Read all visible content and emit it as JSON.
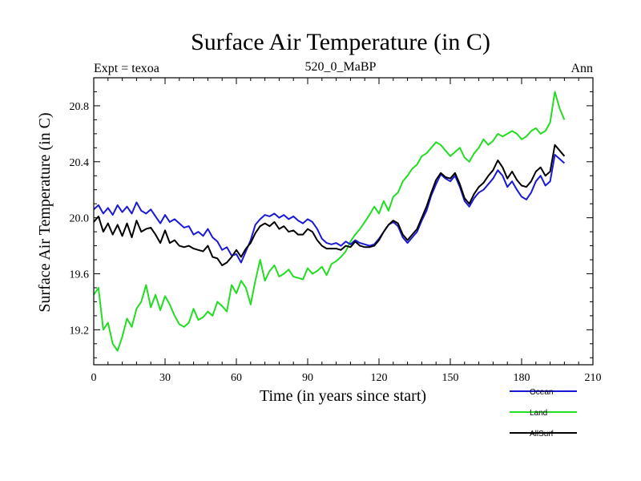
{
  "chart_data": {
    "type": "line",
    "title": "Surface Air Temperature (in C)",
    "left_subtitle": "Expt = texoa",
    "center_subtitle": "520_0_MaBP",
    "right_subtitle": "Ann",
    "xlabel": "Time (in years since start)",
    "ylabel": "Surface Air Temperature (in C)",
    "xlim": [
      0,
      210
    ],
    "ylim": [
      18.95,
      21.0
    ],
    "x_ticks": [
      0,
      30,
      60,
      90,
      120,
      150,
      180,
      210
    ],
    "x_tick_labels": [
      "0",
      "30",
      "60",
      "90",
      "120",
      "150",
      "180",
      "210"
    ],
    "y_ticks": [
      19.2,
      19.6,
      20.0,
      20.4,
      20.8
    ],
    "y_tick_labels": [
      "19.2",
      "19.6",
      "20.0",
      "20.4",
      "20.8"
    ],
    "x_start": 0,
    "x_step": 2,
    "series": [
      {
        "name": "Ocean",
        "color": "#1a1ad6",
        "values": [
          20.06,
          20.09,
          20.03,
          20.07,
          20.02,
          20.09,
          20.04,
          20.08,
          20.03,
          20.11,
          20.05,
          20.03,
          20.06,
          20.01,
          19.96,
          20.02,
          19.97,
          19.99,
          19.96,
          19.93,
          19.94,
          19.88,
          19.9,
          19.87,
          19.92,
          19.86,
          19.83,
          19.77,
          19.79,
          19.73,
          19.74,
          19.68,
          19.76,
          19.84,
          19.95,
          19.99,
          20.02,
          20.01,
          20.03,
          20.0,
          20.02,
          19.99,
          20.01,
          19.98,
          19.96,
          19.99,
          19.97,
          19.92,
          19.85,
          19.82,
          19.81,
          19.82,
          19.8,
          19.83,
          19.81,
          19.84,
          19.82,
          19.81,
          19.8,
          19.81,
          19.85,
          19.9,
          19.95,
          19.97,
          19.94,
          19.86,
          19.82,
          19.86,
          19.9,
          19.98,
          20.05,
          20.16,
          20.24,
          20.31,
          20.28,
          20.26,
          20.3,
          20.22,
          20.12,
          20.08,
          20.14,
          20.18,
          20.2,
          20.24,
          20.28,
          20.34,
          20.3,
          20.22,
          20.26,
          20.2,
          20.15,
          20.13,
          20.18,
          20.26,
          20.3,
          20.23,
          20.26,
          20.45,
          20.42,
          20.39
        ]
      },
      {
        "name": "Land",
        "color": "#22dd22",
        "values": [
          19.45,
          19.5,
          19.2,
          19.25,
          19.1,
          19.05,
          19.15,
          19.28,
          19.22,
          19.35,
          19.4,
          19.52,
          19.36,
          19.45,
          19.34,
          19.44,
          19.38,
          19.3,
          19.24,
          19.22,
          19.25,
          19.35,
          19.27,
          19.29,
          19.33,
          19.3,
          19.4,
          19.37,
          19.33,
          19.52,
          19.46,
          19.55,
          19.5,
          19.38,
          19.55,
          19.7,
          19.55,
          19.62,
          19.66,
          19.58,
          19.6,
          19.63,
          19.58,
          19.57,
          19.56,
          19.64,
          19.6,
          19.62,
          19.65,
          19.59,
          19.67,
          19.69,
          19.72,
          19.76,
          19.83,
          19.88,
          19.92,
          19.97,
          20.02,
          20.08,
          20.03,
          20.12,
          20.05,
          20.15,
          20.18,
          20.26,
          20.3,
          20.35,
          20.38,
          20.44,
          20.46,
          20.5,
          20.54,
          20.52,
          20.48,
          20.44,
          20.47,
          20.5,
          20.43,
          20.4,
          20.46,
          20.5,
          20.56,
          20.52,
          20.55,
          20.6,
          20.58,
          20.6,
          20.62,
          20.6,
          20.56,
          20.58,
          20.62,
          20.64,
          20.6,
          20.62,
          20.68,
          20.9,
          20.78,
          20.7
        ]
      },
      {
        "name": "AllSurf",
        "color": "#000000",
        "values": [
          19.97,
          20.01,
          19.9,
          19.96,
          19.88,
          19.95,
          19.87,
          19.96,
          19.86,
          19.98,
          19.9,
          19.92,
          19.93,
          19.88,
          19.82,
          19.91,
          19.82,
          19.84,
          19.8,
          19.79,
          19.8,
          19.78,
          19.77,
          19.76,
          19.8,
          19.72,
          19.71,
          19.66,
          19.68,
          19.72,
          19.77,
          19.72,
          19.78,
          19.82,
          19.89,
          19.94,
          19.96,
          19.94,
          19.97,
          19.92,
          19.94,
          19.9,
          19.91,
          19.88,
          19.88,
          19.92,
          19.9,
          19.84,
          19.8,
          19.78,
          19.78,
          19.78,
          19.77,
          19.8,
          19.79,
          19.83,
          19.8,
          19.79,
          19.79,
          19.8,
          19.84,
          19.9,
          19.95,
          19.98,
          19.96,
          19.88,
          19.84,
          19.88,
          19.92,
          20.0,
          20.08,
          20.18,
          20.27,
          20.32,
          20.29,
          20.28,
          20.32,
          20.24,
          20.14,
          20.1,
          20.17,
          20.22,
          20.25,
          20.3,
          20.34,
          20.41,
          20.36,
          20.28,
          20.33,
          20.27,
          20.23,
          20.22,
          20.26,
          20.33,
          20.36,
          20.3,
          20.33,
          20.52,
          20.48,
          20.44
        ]
      }
    ]
  }
}
